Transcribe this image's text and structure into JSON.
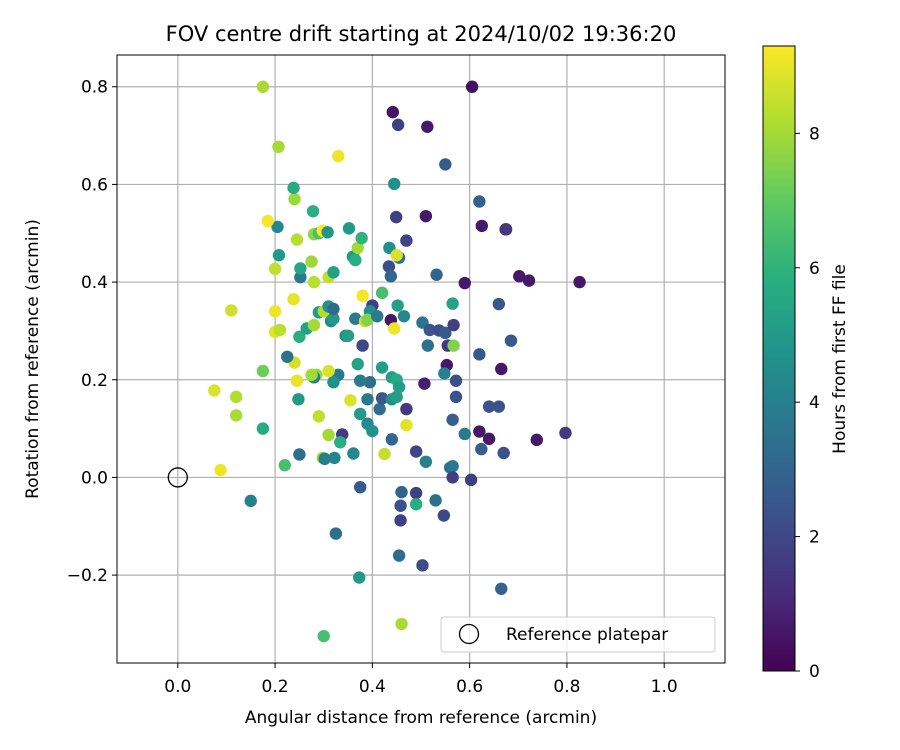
{
  "chart_data": {
    "type": "scatter",
    "title": "FOV centre drift starting at 2024/10/02 19:36:20",
    "xlabel": "Angular distance from reference (arcmin)",
    "ylabel": "Rotation from reference (arcmin)",
    "xlim": [
      -0.125,
      1.125
    ],
    "ylim": [
      -0.38,
      0.865
    ],
    "xticks": [
      0.0,
      0.2,
      0.4,
      0.6,
      0.8,
      1.0
    ],
    "xtick_labels": [
      "0.0",
      "0.2",
      "0.4",
      "0.6",
      "0.8",
      "1.0"
    ],
    "yticks": [
      -0.2,
      0.0,
      0.2,
      0.4,
      0.6,
      0.8
    ],
    "ytick_labels": [
      "−0.2",
      "0.0",
      "0.2",
      "0.4",
      "0.6",
      "0.8"
    ],
    "grid": true,
    "colormap": "viridis",
    "colorbar": {
      "label": "Hours from first FF file",
      "range": [
        0,
        9.3
      ],
      "ticks": [
        0,
        2,
        4,
        6,
        8
      ],
      "tick_labels": [
        "0",
        "2",
        "4",
        "6",
        "8"
      ]
    },
    "legend": {
      "position": "bottom-right",
      "entries": [
        {
          "label": "Reference platepar",
          "marker": "open-circle"
        }
      ]
    },
    "reference_point": {
      "x": 0.0,
      "y": 0.0
    },
    "points": [
      {
        "x": 0.442,
        "y": 0.748,
        "c": 0.5
      },
      {
        "x": 0.605,
        "y": 0.8,
        "c": 0.4
      },
      {
        "x": 0.513,
        "y": 0.718,
        "c": 0.6
      },
      {
        "x": 0.453,
        "y": 0.722,
        "c": 1.8
      },
      {
        "x": 0.55,
        "y": 0.641,
        "c": 2.6
      },
      {
        "x": 0.445,
        "y": 0.601,
        "c": 4.7
      },
      {
        "x": 0.62,
        "y": 0.565,
        "c": 2.9
      },
      {
        "x": 0.449,
        "y": 0.533,
        "c": 1.7
      },
      {
        "x": 0.51,
        "y": 0.535,
        "c": 0.6
      },
      {
        "x": 0.625,
        "y": 0.515,
        "c": 0.6
      },
      {
        "x": 0.674,
        "y": 0.508,
        "c": 0.6
      },
      {
        "x": 0.675,
        "y": 0.508,
        "c": 1.5
      },
      {
        "x": 0.47,
        "y": 0.485,
        "c": 1.9
      },
      {
        "x": 0.435,
        "y": 0.47,
        "c": 4.6
      },
      {
        "x": 0.455,
        "y": 0.45,
        "c": 3.5
      },
      {
        "x": 0.434,
        "y": 0.432,
        "c": 2.2
      },
      {
        "x": 0.532,
        "y": 0.415,
        "c": 3.0
      },
      {
        "x": 0.59,
        "y": 0.398,
        "c": 0.6
      },
      {
        "x": 0.702,
        "y": 0.412,
        "c": 0.6
      },
      {
        "x": 0.722,
        "y": 0.403,
        "c": 0.6
      },
      {
        "x": 0.826,
        "y": 0.4,
        "c": 0.6
      },
      {
        "x": 0.438,
        "y": 0.412,
        "c": 3.0
      },
      {
        "x": 0.42,
        "y": 0.378,
        "c": 6.5
      },
      {
        "x": 0.66,
        "y": 0.355,
        "c": 2.5
      },
      {
        "x": 0.4,
        "y": 0.352,
        "c": 1.8
      },
      {
        "x": 0.452,
        "y": 0.352,
        "c": 5.2
      },
      {
        "x": 0.565,
        "y": 0.356,
        "c": 5.3
      },
      {
        "x": 0.465,
        "y": 0.33,
        "c": 4.3
      },
      {
        "x": 0.438,
        "y": 0.322,
        "c": 0.6
      },
      {
        "x": 0.503,
        "y": 0.317,
        "c": 3.6
      },
      {
        "x": 0.518,
        "y": 0.302,
        "c": 2.5
      },
      {
        "x": 0.537,
        "y": 0.301,
        "c": 2.2
      },
      {
        "x": 0.55,
        "y": 0.296,
        "c": 2.6
      },
      {
        "x": 0.567,
        "y": 0.312,
        "c": 1.7
      },
      {
        "x": 0.685,
        "y": 0.28,
        "c": 2.6
      },
      {
        "x": 0.555,
        "y": 0.27,
        "c": 1.5
      },
      {
        "x": 0.567,
        "y": 0.27,
        "c": 7.5
      },
      {
        "x": 0.514,
        "y": 0.27,
        "c": 3.5
      },
      {
        "x": 0.62,
        "y": 0.252,
        "c": 2.5
      },
      {
        "x": 0.553,
        "y": 0.23,
        "c": 0.6
      },
      {
        "x": 0.548,
        "y": 0.213,
        "c": 4.0
      },
      {
        "x": 0.665,
        "y": 0.222,
        "c": 0.6
      },
      {
        "x": 0.572,
        "y": 0.198,
        "c": 2.3
      },
      {
        "x": 0.507,
        "y": 0.192,
        "c": 0.8
      },
      {
        "x": 0.572,
        "y": 0.165,
        "c": 2.3
      },
      {
        "x": 0.47,
        "y": 0.14,
        "c": 1.5
      },
      {
        "x": 0.565,
        "y": 0.118,
        "c": 2.8
      },
      {
        "x": 0.59,
        "y": 0.089,
        "c": 3.8
      },
      {
        "x": 0.62,
        "y": 0.094,
        "c": 0.6
      },
      {
        "x": 0.64,
        "y": 0.145,
        "c": 2.4
      },
      {
        "x": 0.66,
        "y": 0.145,
        "c": 2.4
      },
      {
        "x": 0.64,
        "y": 0.079,
        "c": 0.6
      },
      {
        "x": 0.738,
        "y": 0.077,
        "c": 0.6
      },
      {
        "x": 0.797,
        "y": 0.091,
        "c": 1.5
      },
      {
        "x": 0.624,
        "y": 0.058,
        "c": 2.8
      },
      {
        "x": 0.67,
        "y": 0.05,
        "c": 2.4
      },
      {
        "x": 0.49,
        "y": 0.053,
        "c": 1.9
      },
      {
        "x": 0.44,
        "y": 0.078,
        "c": 3.1
      },
      {
        "x": 0.51,
        "y": 0.032,
        "c": 4.0
      },
      {
        "x": 0.56,
        "y": 0.02,
        "c": 3.3
      },
      {
        "x": 0.565,
        "y": 0.023,
        "c": 3.7
      },
      {
        "x": 0.565,
        "y": 0.0,
        "c": 1.7
      },
      {
        "x": 0.603,
        "y": -0.005,
        "c": 1.7
      },
      {
        "x": 0.46,
        "y": -0.03,
        "c": 2.9
      },
      {
        "x": 0.49,
        "y": -0.032,
        "c": 1.8
      },
      {
        "x": 0.53,
        "y": -0.047,
        "c": 3.4
      },
      {
        "x": 0.458,
        "y": -0.058,
        "c": 2.3
      },
      {
        "x": 0.49,
        "y": -0.055,
        "c": 5.8
      },
      {
        "x": 0.547,
        "y": -0.078,
        "c": 2.0
      },
      {
        "x": 0.458,
        "y": -0.088,
        "c": 1.8
      },
      {
        "x": 0.455,
        "y": -0.16,
        "c": 3.3
      },
      {
        "x": 0.503,
        "y": -0.18,
        "c": 2.2
      },
      {
        "x": 0.665,
        "y": -0.228,
        "c": 2.9
      },
      {
        "x": 0.375,
        "y": -0.02,
        "c": 2.7
      },
      {
        "x": 0.325,
        "y": -0.115,
        "c": 3.4
      },
      {
        "x": 0.373,
        "y": -0.205,
        "c": 5.0
      },
      {
        "x": 0.3,
        "y": -0.325,
        "c": 6.5
      },
      {
        "x": 0.46,
        "y": -0.3,
        "c": 8.1
      },
      {
        "x": 0.15,
        "y": -0.048,
        "c": 4.0
      },
      {
        "x": 0.22,
        "y": 0.025,
        "c": 6.5
      },
      {
        "x": 0.25,
        "y": 0.047,
        "c": 3.4
      },
      {
        "x": 0.298,
        "y": 0.04,
        "c": 7.9
      },
      {
        "x": 0.302,
        "y": 0.038,
        "c": 3.9
      },
      {
        "x": 0.322,
        "y": 0.04,
        "c": 4.2
      },
      {
        "x": 0.338,
        "y": 0.088,
        "c": 1.6
      },
      {
        "x": 0.334,
        "y": 0.072,
        "c": 5.8
      },
      {
        "x": 0.31,
        "y": 0.087,
        "c": 8.0
      },
      {
        "x": 0.361,
        "y": 0.049,
        "c": 4.3
      },
      {
        "x": 0.425,
        "y": 0.048,
        "c": 8.5
      },
      {
        "x": 0.39,
        "y": 0.11,
        "c": 4.3
      },
      {
        "x": 0.4,
        "y": 0.095,
        "c": 4.7
      },
      {
        "x": 0.375,
        "y": 0.13,
        "c": 5.0
      },
      {
        "x": 0.39,
        "y": 0.16,
        "c": 3.8
      },
      {
        "x": 0.415,
        "y": 0.14,
        "c": 3.3
      },
      {
        "x": 0.42,
        "y": 0.162,
        "c": 2.5
      },
      {
        "x": 0.44,
        "y": 0.16,
        "c": 4.6
      },
      {
        "x": 0.45,
        "y": 0.165,
        "c": 5.2
      },
      {
        "x": 0.44,
        "y": 0.205,
        "c": 5.2
      },
      {
        "x": 0.45,
        "y": 0.2,
        "c": 5.6
      },
      {
        "x": 0.455,
        "y": 0.185,
        "c": 5.2
      },
      {
        "x": 0.47,
        "y": 0.107,
        "c": 8.9
      },
      {
        "x": 0.42,
        "y": 0.225,
        "c": 5.2
      },
      {
        "x": 0.395,
        "y": 0.195,
        "c": 3.5
      },
      {
        "x": 0.375,
        "y": 0.198,
        "c": 3.8
      },
      {
        "x": 0.37,
        "y": 0.232,
        "c": 5.3
      },
      {
        "x": 0.355,
        "y": 0.158,
        "c": 8.8
      },
      {
        "x": 0.33,
        "y": 0.21,
        "c": 3.7
      },
      {
        "x": 0.32,
        "y": 0.195,
        "c": 4.7
      },
      {
        "x": 0.31,
        "y": 0.218,
        "c": 8.8
      },
      {
        "x": 0.285,
        "y": 0.21,
        "c": 7.8
      },
      {
        "x": 0.28,
        "y": 0.205,
        "c": 4.0
      },
      {
        "x": 0.275,
        "y": 0.21,
        "c": 8.0
      },
      {
        "x": 0.245,
        "y": 0.198,
        "c": 9.0
      },
      {
        "x": 0.24,
        "y": 0.235,
        "c": 8.7
      },
      {
        "x": 0.225,
        "y": 0.247,
        "c": 3.5
      },
      {
        "x": 0.248,
        "y": 0.16,
        "c": 5.0
      },
      {
        "x": 0.29,
        "y": 0.125,
        "c": 8.4
      },
      {
        "x": 0.175,
        "y": 0.218,
        "c": 7.2
      },
      {
        "x": 0.175,
        "y": 0.1,
        "c": 5.7
      },
      {
        "x": 0.12,
        "y": 0.165,
        "c": 8.2
      },
      {
        "x": 0.12,
        "y": 0.127,
        "c": 8.1
      },
      {
        "x": 0.075,
        "y": 0.178,
        "c": 8.8
      },
      {
        "x": 0.088,
        "y": 0.015,
        "c": 9.1
      },
      {
        "x": 0.11,
        "y": 0.342,
        "c": 8.6
      },
      {
        "x": 0.2,
        "y": 0.34,
        "c": 9.1
      },
      {
        "x": 0.2,
        "y": 0.298,
        "c": 8.9
      },
      {
        "x": 0.21,
        "y": 0.302,
        "c": 8.3
      },
      {
        "x": 0.238,
        "y": 0.365,
        "c": 9.0
      },
      {
        "x": 0.25,
        "y": 0.288,
        "c": 5.8
      },
      {
        "x": 0.265,
        "y": 0.305,
        "c": 5.3
      },
      {
        "x": 0.28,
        "y": 0.312,
        "c": 8.0
      },
      {
        "x": 0.29,
        "y": 0.338,
        "c": 5.0
      },
      {
        "x": 0.3,
        "y": 0.34,
        "c": 8.2
      },
      {
        "x": 0.31,
        "y": 0.35,
        "c": 4.6
      },
      {
        "x": 0.315,
        "y": 0.32,
        "c": 4.3
      },
      {
        "x": 0.32,
        "y": 0.325,
        "c": 5.0
      },
      {
        "x": 0.32,
        "y": 0.345,
        "c": 3.2
      },
      {
        "x": 0.345,
        "y": 0.29,
        "c": 4.5
      },
      {
        "x": 0.35,
        "y": 0.29,
        "c": 5.2
      },
      {
        "x": 0.365,
        "y": 0.325,
        "c": 3.8
      },
      {
        "x": 0.38,
        "y": 0.27,
        "c": 2.0
      },
      {
        "x": 0.385,
        "y": 0.32,
        "c": 8.5
      },
      {
        "x": 0.38,
        "y": 0.372,
        "c": 9.2
      },
      {
        "x": 0.395,
        "y": 0.34,
        "c": 4.6
      },
      {
        "x": 0.39,
        "y": 0.323,
        "c": 7.5
      },
      {
        "x": 0.41,
        "y": 0.33,
        "c": 3.8
      },
      {
        "x": 0.445,
        "y": 0.305,
        "c": 9.1
      },
      {
        "x": 0.45,
        "y": 0.455,
        "c": 8.8
      },
      {
        "x": 0.205,
        "y": 0.513,
        "c": 4.2
      },
      {
        "x": 0.208,
        "y": 0.455,
        "c": 5.0
      },
      {
        "x": 0.2,
        "y": 0.427,
        "c": 8.4
      },
      {
        "x": 0.185,
        "y": 0.525,
        "c": 9.2
      },
      {
        "x": 0.24,
        "y": 0.57,
        "c": 7.9
      },
      {
        "x": 0.238,
        "y": 0.593,
        "c": 5.7
      },
      {
        "x": 0.245,
        "y": 0.487,
        "c": 8.3
      },
      {
        "x": 0.252,
        "y": 0.41,
        "c": 3.8
      },
      {
        "x": 0.252,
        "y": 0.428,
        "c": 5.5
      },
      {
        "x": 0.275,
        "y": 0.442,
        "c": 7.9
      },
      {
        "x": 0.28,
        "y": 0.4,
        "c": 8.3
      },
      {
        "x": 0.28,
        "y": 0.498,
        "c": 7.7
      },
      {
        "x": 0.278,
        "y": 0.545,
        "c": 5.8
      },
      {
        "x": 0.29,
        "y": 0.5,
        "c": 6.5
      },
      {
        "x": 0.298,
        "y": 0.505,
        "c": 9.3
      },
      {
        "x": 0.308,
        "y": 0.502,
        "c": 4.8
      },
      {
        "x": 0.31,
        "y": 0.41,
        "c": 8.4
      },
      {
        "x": 0.32,
        "y": 0.42,
        "c": 5.3
      },
      {
        "x": 0.33,
        "y": 0.658,
        "c": 9.1
      },
      {
        "x": 0.352,
        "y": 0.51,
        "c": 5.0
      },
      {
        "x": 0.36,
        "y": 0.452,
        "c": 4.9
      },
      {
        "x": 0.365,
        "y": 0.445,
        "c": 5.8
      },
      {
        "x": 0.37,
        "y": 0.47,
        "c": 8.0
      },
      {
        "x": 0.378,
        "y": 0.49,
        "c": 6.0
      },
      {
        "x": 0.207,
        "y": 0.677,
        "c": 8.0
      },
      {
        "x": 0.175,
        "y": 0.8,
        "c": 8.1
      }
    ]
  }
}
